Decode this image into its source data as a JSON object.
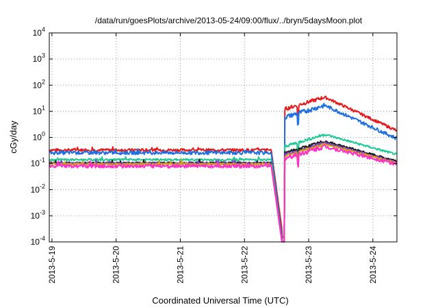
{
  "chart_data": {
    "type": "line",
    "title": "/data/run/goesPlots/archive/2013-05-24/09:00/flux/../bryn/5daysMoon.plot",
    "xlabel": "Coordinated Universal Time (UTC)",
    "ylabel": "cGy/day",
    "x_ticks": [
      "2013-5-19",
      "2013-5-20",
      "2013-5-21",
      "2013-5-22",
      "2013-5-23",
      "2013-5-24"
    ],
    "xlim": [
      "2013-5-18 23:00",
      "2013-5-24 09:00"
    ],
    "y_scale": "log",
    "ylim": [
      0.0001,
      10000
    ],
    "y_ticks": [
      {
        "base": "10",
        "exp": "-4"
      },
      {
        "base": "10",
        "exp": "-3"
      },
      {
        "base": "10",
        "exp": "-2"
      },
      {
        "base": "10",
        "exp": "-1"
      },
      {
        "base": "10",
        "exp": "0"
      },
      {
        "base": "10",
        "exp": "1"
      },
      {
        "base": "10",
        "exp": "2"
      },
      {
        "base": "10",
        "exp": "3"
      },
      {
        "base": "10",
        "exp": "4"
      }
    ],
    "grid": true,
    "series": [
      {
        "color": "#e41a1c",
        "pre": 0.33,
        "dip_floor": 0.0003,
        "peak": 35,
        "end": 1.8,
        "noise": 0.04
      },
      {
        "color": "#1f6fe0",
        "pre": 0.26,
        "dip_floor": 0.00015,
        "peak": 17,
        "end": 0.9,
        "noise": 0.05
      },
      {
        "color": "#20c997",
        "pre": 0.14,
        "dip_floor": 0.0001,
        "peak": 1.3,
        "end": 0.22,
        "noise": 0.03
      },
      {
        "color": "#1a1a1a",
        "pre": 0.105,
        "dip_floor": 0.0001,
        "peak": 0.72,
        "end": 0.12,
        "noise": 0.03
      },
      {
        "color": "#7b3fc4",
        "pre": 0.1,
        "dip_floor": 0.0001,
        "peak": 0.62,
        "end": 0.11,
        "noise": 0.03
      },
      {
        "color": "#d4a017",
        "pre": 0.095,
        "dip_floor": 0.0001,
        "peak": 0.55,
        "end": 0.105,
        "noise": 0.03
      },
      {
        "color": "#ff2fc8",
        "pre": 0.08,
        "dip_floor": 0.0001,
        "peak": 0.45,
        "end": 0.095,
        "noise": 0.05
      }
    ],
    "events": {
      "drop_start": "2013-5-22 10:00",
      "dip_bottom": "2013-5-22 14:00",
      "jump": "2013-5-22 15:00",
      "peak": "2013-5-23 06:00",
      "spike": "2013-5-22 20:00"
    }
  }
}
